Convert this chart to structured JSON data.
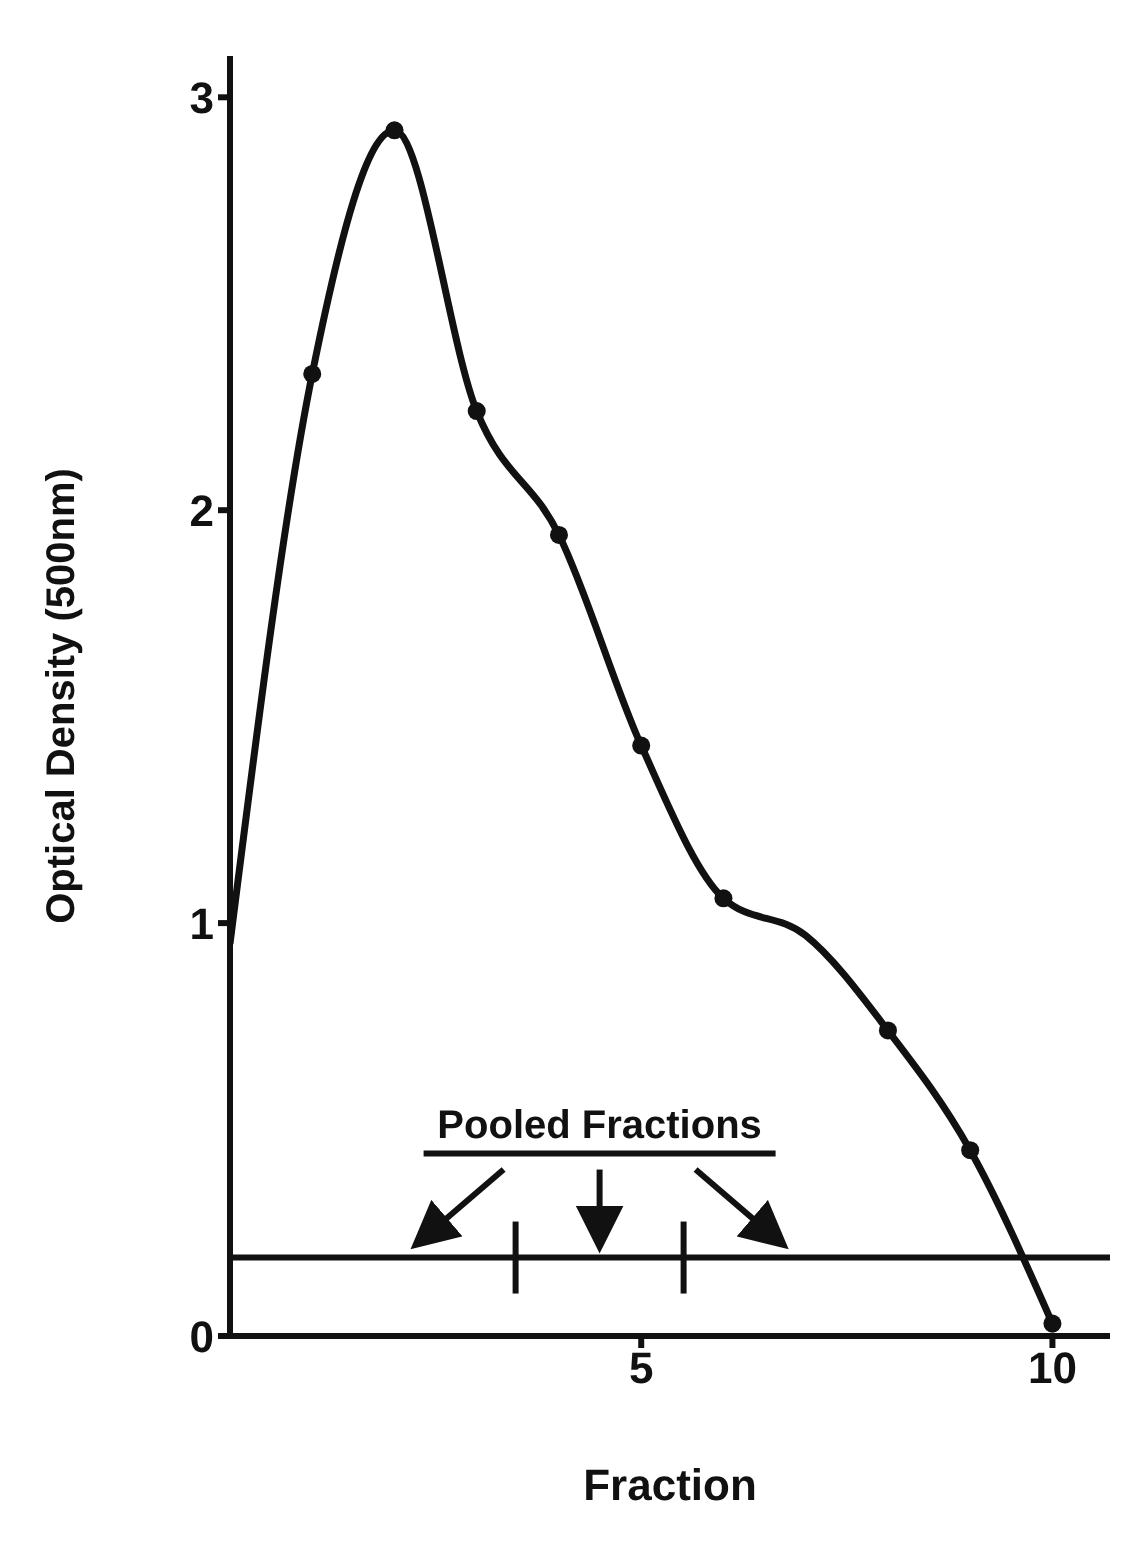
{
  "chart_data": {
    "type": "line",
    "xlabel": "Fraction",
    "ylabel": "Optical Density (500nm)",
    "xlim": [
      0,
      10.7
    ],
    "xticks": [
      5,
      10
    ],
    "ylim": [
      0,
      3.1
    ],
    "yticks": [
      0,
      1,
      2,
      3
    ],
    "series": [
      {
        "color": "#111111",
        "marker": "none",
        "x": [
          0,
          1,
          2,
          3,
          4,
          5,
          6,
          7,
          8,
          9,
          10
        ],
        "values": [
          0.95,
          2.33,
          2.92,
          2.24,
          1.94,
          1.43,
          1.06,
          0.97,
          0.74,
          0.45,
          0.03
        ]
      },
      {
        "type": "scatter",
        "color": "#111111",
        "marker": "circle",
        "x": [
          1,
          2,
          3,
          4,
          5,
          6,
          8,
          9,
          10
        ],
        "values": [
          2.33,
          2.92,
          2.24,
          1.94,
          1.43,
          1.06,
          0.74,
          0.45,
          0.03
        ]
      }
    ],
    "ref_lines": [
      {
        "axis": "y",
        "value": 0.19,
        "color": "#111111"
      }
    ],
    "annotations": [
      "Pooled Fractions"
    ],
    "grid": false,
    "legend": false
  }
}
